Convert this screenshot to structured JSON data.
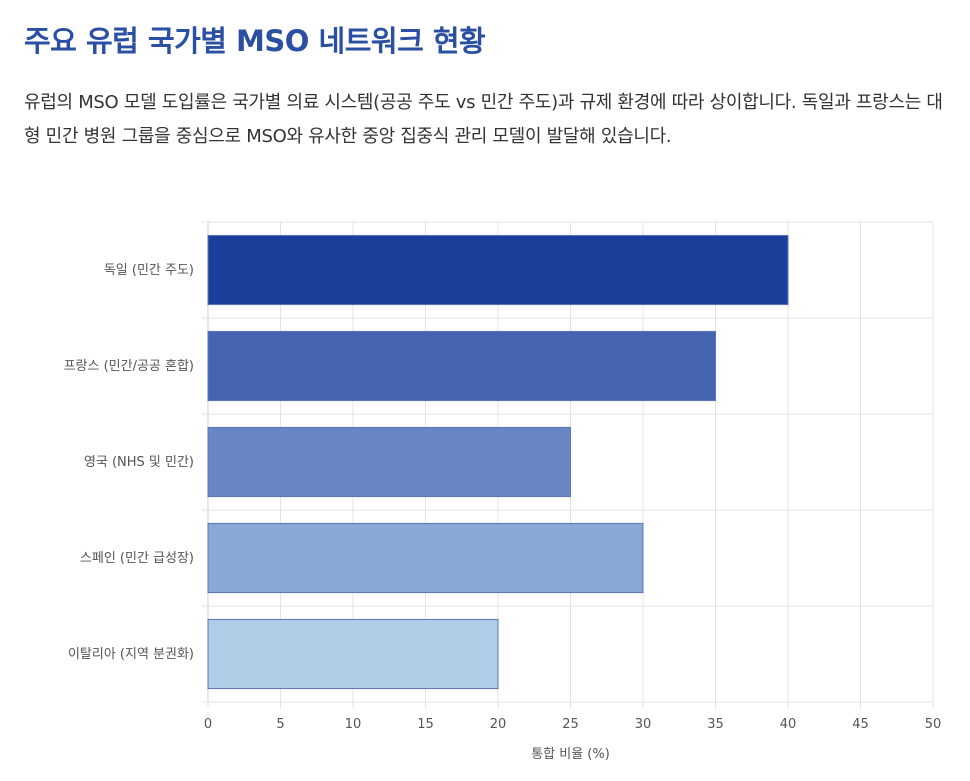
{
  "header": {
    "title": "주요 유럽 국가별 MSO 네트워크 현황",
    "description": "유럽의 MSO 모델 도입률은 국가별 의료 시스템(공공 주도 vs 민간 주도)과 규제 환경에 따라 상이합니다. 독일과 프랑스는 대형 민간 병원 그룹을 중심으로 MSO와 유사한 중앙 집중식 관리 모델이 발달해 있습니다."
  },
  "chart_data": {
    "type": "bar",
    "orientation": "horizontal",
    "categories": [
      "독일 (민간 주도)",
      "프랑스 (민간/공공 혼합)",
      "영국 (NHS 및 민간)",
      "스페인 (민간 급성장)",
      "이탈리아 (지역 분권화)"
    ],
    "values": [
      40,
      35,
      25,
      30,
      20
    ],
    "colors": [
      "#1a3f9a",
      "#4565b0",
      "#6886c3",
      "#89a8d4",
      "#aecde6"
    ],
    "xlabel": "통합 비율 (%)",
    "xlim": [
      0,
      50
    ],
    "xticks": [
      0,
      5,
      10,
      15,
      20,
      25,
      30,
      35,
      40,
      45,
      50
    ],
    "grid": true
  }
}
